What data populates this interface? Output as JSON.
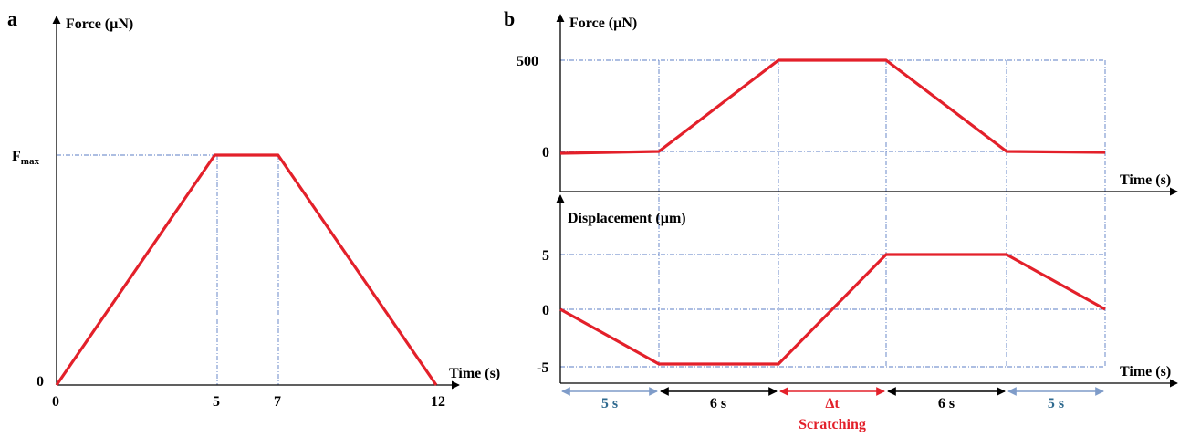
{
  "chart_data": [
    {
      "panel": "a",
      "type": "line",
      "ylabel": "Force (µN)",
      "xlabel": "Time (s)",
      "x_ticks": [
        "0",
        "5",
        "7",
        "12"
      ],
      "y_ticks": [
        "0",
        "F",
        "max"
      ],
      "x": [
        0,
        5,
        7,
        12
      ],
      "y": [
        0,
        1,
        1,
        0
      ],
      "ylim": [
        0,
        1
      ],
      "xlim": [
        0,
        12.5
      ],
      "grid": "dash-dot guides at t=5, t=7 and at F_max",
      "series_color": "#e3202a"
    },
    {
      "panel": "b",
      "type": "line",
      "subplots": [
        {
          "ylabel": "Force (µN)",
          "xlabel": "Time (s)",
          "y_ticks": [
            "500",
            "0"
          ],
          "x": [
            0,
            5,
            11,
            17,
            22,
            27
          ],
          "y": [
            -10,
            0,
            500,
            500,
            0,
            -5
          ],
          "ylim": [
            0,
            500
          ],
          "series_color": "#e3202a"
        },
        {
          "ylabel": "Displacement (µm)",
          "xlabel": "Time (s)",
          "y_ticks": [
            "5",
            "0",
            "-5"
          ],
          "x": [
            0,
            5,
            11,
            17,
            22,
            27
          ],
          "y": [
            0,
            -5,
            -5,
            5,
            5,
            0
          ],
          "ylim": [
            -5,
            5
          ],
          "series_color": "#e3202a"
        }
      ],
      "segments": [
        {
          "label": "5 s",
          "color": "#2f6a8f",
          "arrow_color": "#7f9cc9"
        },
        {
          "label": "6 s",
          "color": "#000000",
          "arrow_color": "#000000"
        },
        {
          "label": "Δt",
          "sublabel": "Scratching",
          "color": "#e3202a",
          "arrow_color": "#e3202a"
        },
        {
          "label": "6 s",
          "color": "#000000",
          "arrow_color": "#000000"
        },
        {
          "label": "5 s",
          "color": "#2f6a8f",
          "arrow_color": "#7f9cc9"
        }
      ],
      "grid": "dash-dot blue grid lines at segment boundaries and tick values"
    }
  ],
  "labels": {
    "panel_a": "a",
    "panel_b": "b",
    "a_ylabel": "Force (µN)",
    "a_xlabel": "Time (s)",
    "a_ytick_zero": "0",
    "a_ytick_f": "F",
    "a_ytick_f_sub": "max",
    "a_xtick_0": "0",
    "a_xtick_5": "5",
    "a_xtick_7": "7",
    "a_xtick_12": "12",
    "b_force_ylabel": "Force (µN)",
    "b_force_xlabel": "Time (s)",
    "b_force_tick_500": "500",
    "b_force_tick_0": "0",
    "b_disp_ylabel": "Displacement (µm)",
    "b_disp_xlabel": "Time (s)",
    "b_disp_tick_5": "5",
    "b_disp_tick_0": "0",
    "b_disp_tick_m5": "-5",
    "seg1": "5 s",
    "seg2": "6 s",
    "seg3": "Δt",
    "seg3_sub": "Scratching",
    "seg4": "6 s",
    "seg5": "5 s"
  }
}
